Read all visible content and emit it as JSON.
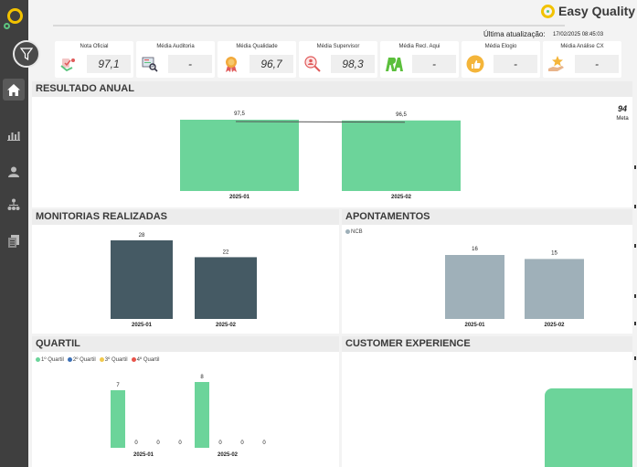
{
  "brand": {
    "name": "Easy Quality"
  },
  "header": {
    "update_label": "Última atualização:",
    "update_value": "17/02/2025 08:45:03"
  },
  "kpis": [
    {
      "title": "Nota Oficial",
      "value": "97,1",
      "icon": "quality-hands-icon"
    },
    {
      "title": "Média Auditoria",
      "value": "-",
      "icon": "audit-search-icon"
    },
    {
      "title": "Média Qualidade",
      "value": "96,7",
      "icon": "medal-icon"
    },
    {
      "title": "Média Supervisor",
      "value": "98,3",
      "icon": "supervisor-search-icon"
    },
    {
      "title": "Média Recl. Aqui",
      "value": "-",
      "icon": "reclame-aqui-logo"
    },
    {
      "title": "Média Elogio",
      "value": "-",
      "icon": "thumbs-up-icon"
    },
    {
      "title": "Média Análise CX",
      "value": "-",
      "icon": "star-hand-icon"
    }
  ],
  "sections": {
    "resultado": "RESULTADO ANUAL",
    "monitorias": "MONITORIAS REALIZADAS",
    "apontamentos": "APONTAMENTOS",
    "quartil": "QUARTIL",
    "cx": "CUSTOMER EXPERIENCE"
  },
  "meta": {
    "value": "94",
    "label": "Meta"
  },
  "chart_data": [
    {
      "type": "bar",
      "title": "RESULTADO ANUAL",
      "categories": [
        "2025-01",
        "2025-02"
      ],
      "values": [
        97.5,
        96.5
      ],
      "value_labels": [
        "97,5",
        "96,5"
      ],
      "target": 94,
      "color": "#6cd49a"
    },
    {
      "type": "bar",
      "title": "MONITORIAS REALIZADAS",
      "categories": [
        "2025-01",
        "2025-02"
      ],
      "values": [
        28,
        22
      ],
      "color": "#455a64"
    },
    {
      "type": "bar",
      "title": "APONTAMENTOS",
      "categories": [
        "2025-01",
        "2025-02"
      ],
      "series": [
        {
          "name": "NCB",
          "values": [
            16,
            15
          ]
        }
      ],
      "color": "#9fb0b9"
    },
    {
      "type": "bar",
      "title": "QUARTIL",
      "categories": [
        "2025-01",
        "2025-02"
      ],
      "series": [
        {
          "name": "1º Quartil",
          "values": [
            7,
            8
          ],
          "color": "#6cd49a"
        },
        {
          "name": "2º Quartil",
          "values": [
            0,
            0
          ],
          "color": "#3b6fb6"
        },
        {
          "name": "3º Quartil",
          "values": [
            0,
            0
          ],
          "color": "#f2c94c"
        },
        {
          "name": "4º Quartil",
          "values": [
            0,
            0
          ],
          "color": "#e8534a"
        }
      ]
    }
  ]
}
